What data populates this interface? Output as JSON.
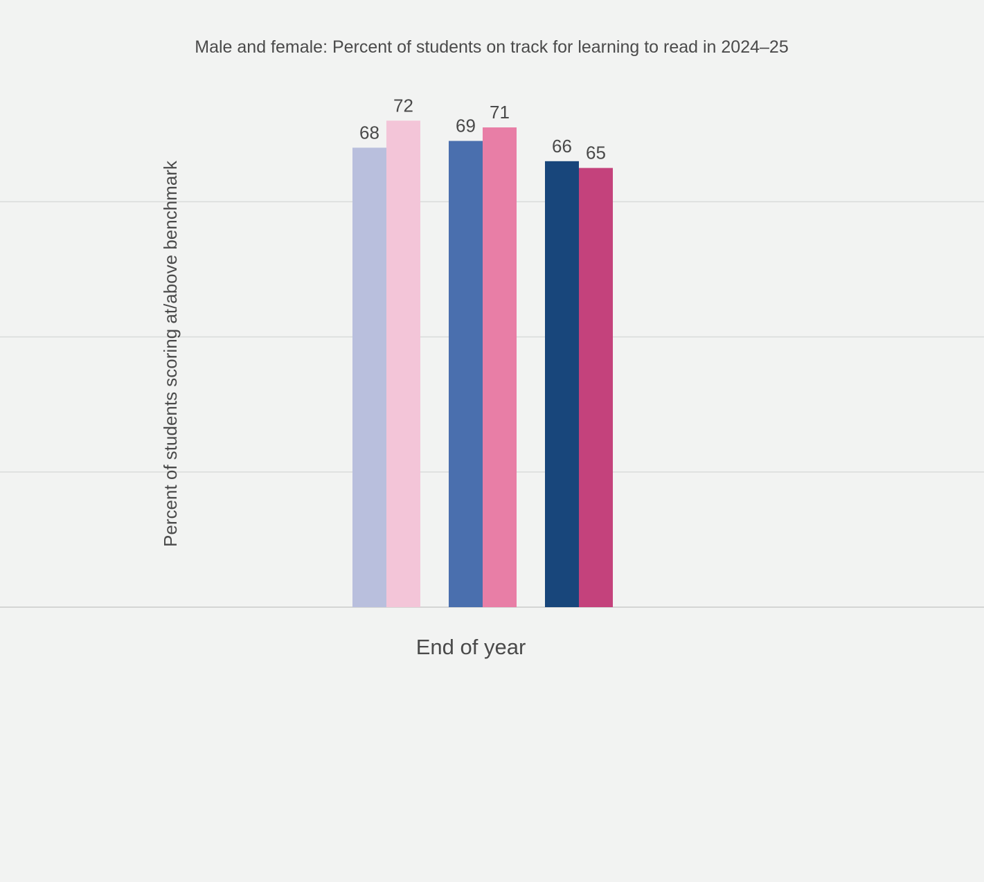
{
  "chart_data": {
    "type": "bar",
    "title": "Male and female: Percent of students on track for learning to read in 2024–25",
    "xlabel": "",
    "ylabel": "Percent of students scoring at/above benchmark",
    "categories": [
      "End of year"
    ],
    "ylim": [
      0,
      90
    ],
    "gridlines": [
      0,
      20,
      40,
      60
    ],
    "grid": true,
    "legend": "none",
    "bars": [
      {
        "category": "End of year",
        "value": 68,
        "label": "68",
        "color": "#b9bfdd"
      },
      {
        "category": "End of year",
        "value": 72,
        "label": "72",
        "color": "#f3c5d8"
      },
      {
        "category": "End of year",
        "value": 69,
        "label": "69",
        "color": "#4a6fae"
      },
      {
        "category": "End of year",
        "value": 71,
        "label": "71",
        "color": "#e87ea6"
      },
      {
        "category": "End of year",
        "value": 66,
        "label": "66",
        "color": "#18467b"
      },
      {
        "category": "End of year",
        "value": 65,
        "label": "65",
        "color": "#c4427c"
      }
    ]
  }
}
